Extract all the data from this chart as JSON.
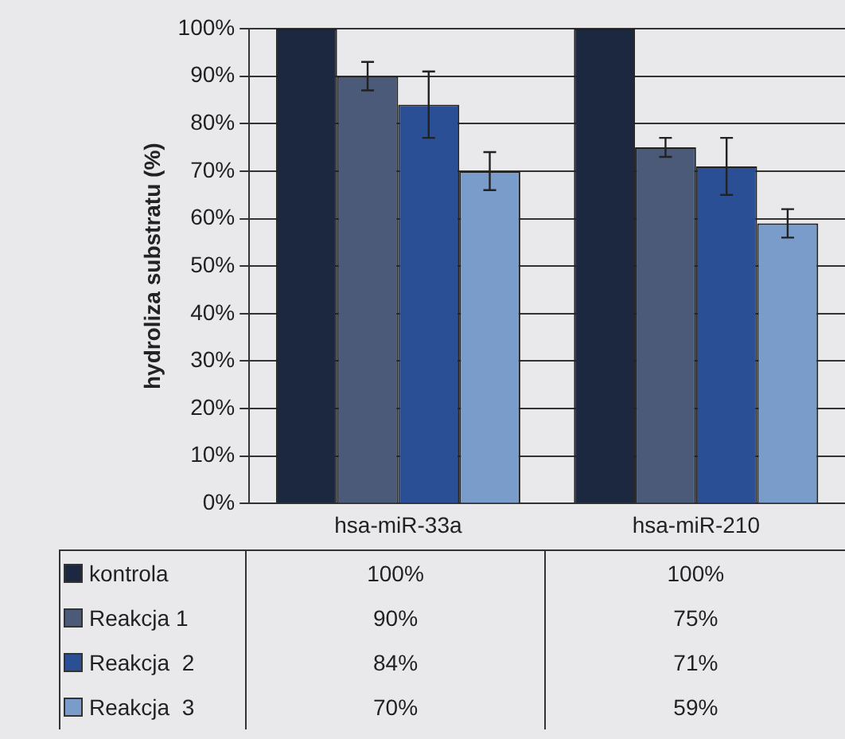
{
  "chart_data": {
    "type": "bar",
    "ylabel": "hydroliza substratu (%)",
    "categories": [
      "hsa-miR-33a",
      "hsa-miR-210"
    ],
    "series": [
      {
        "name": "kontrola",
        "color": "#1c2740",
        "values": [
          100,
          100
        ],
        "value_labels": [
          "100%",
          "100%"
        ]
      },
      {
        "name": "Reakcja 1",
        "color": "#4a5a78",
        "values": [
          90,
          75
        ],
        "errors": [
          3,
          2
        ],
        "value_labels": [
          "90%",
          "75%"
        ]
      },
      {
        "name": "Reakcja  2",
        "color": "#2a4f95",
        "values": [
          84,
          71
        ],
        "errors": [
          7,
          6
        ],
        "value_labels": [
          "84%",
          "71%"
        ]
      },
      {
        "name": "Reakcja  3",
        "color": "#7a9ccb",
        "values": [
          70,
          59
        ],
        "errors": [
          4,
          3
        ],
        "value_labels": [
          "70%",
          "59%"
        ]
      }
    ],
    "ylim": [
      0,
      100
    ],
    "yticks": [
      {
        "value": 0,
        "label": "0%"
      },
      {
        "value": 10,
        "label": "10%"
      },
      {
        "value": 20,
        "label": "20%"
      },
      {
        "value": 30,
        "label": "30%"
      },
      {
        "value": 40,
        "label": "40%"
      },
      {
        "value": 50,
        "label": "50%"
      },
      {
        "value": 60,
        "label": "60%"
      },
      {
        "value": 70,
        "label": "70%"
      },
      {
        "value": 80,
        "label": "80%"
      },
      {
        "value": 90,
        "label": "90%"
      },
      {
        "value": 100,
        "label": "100%"
      }
    ],
    "grid": "y",
    "legend": "bottom"
  }
}
